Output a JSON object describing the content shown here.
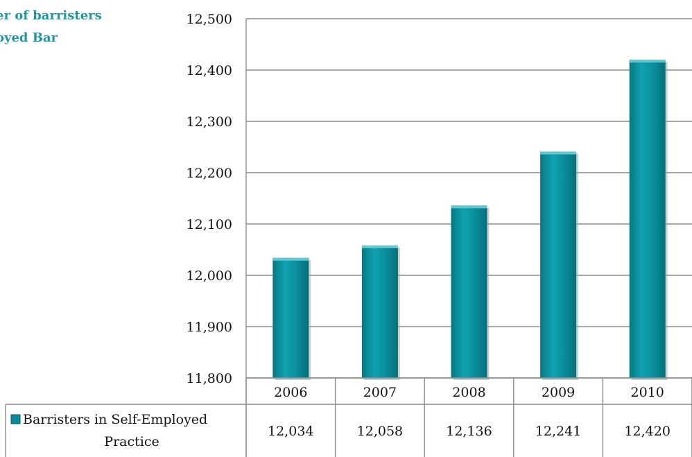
{
  "title": {
    "line1": "er of barristers",
    "line2": "oyed Bar"
  },
  "colors": {
    "bar": "#0b8a98",
    "bar_top": "#5fc7d1",
    "grid": "#8c8c8c",
    "title": "#1e96a6"
  },
  "chart_data": {
    "type": "bar",
    "title": "",
    "xlabel": "",
    "ylabel": "",
    "categories": [
      "2006",
      "2007",
      "2008",
      "2009",
      "2010"
    ],
    "series": [
      {
        "name": "Barristers in Self-Employed Practice",
        "values": [
          12034,
          12058,
          12136,
          12241,
          12420
        ],
        "labels": [
          "12,034",
          "12,058",
          "12,136",
          "12,241",
          "12,420"
        ]
      }
    ],
    "ylim": [
      11800,
      12500
    ],
    "yticks": [
      11800,
      11900,
      12000,
      12100,
      12200,
      12300,
      12400,
      12500
    ],
    "ytick_labels": [
      "11,800",
      "11,900",
      "12,000",
      "12,100",
      "12,200",
      "12,300",
      "12,400",
      "12,500"
    ],
    "grid": true,
    "legend": "data-table",
    "legend_label_lines": [
      "Barristers in Self-Employed",
      "Practice"
    ]
  }
}
